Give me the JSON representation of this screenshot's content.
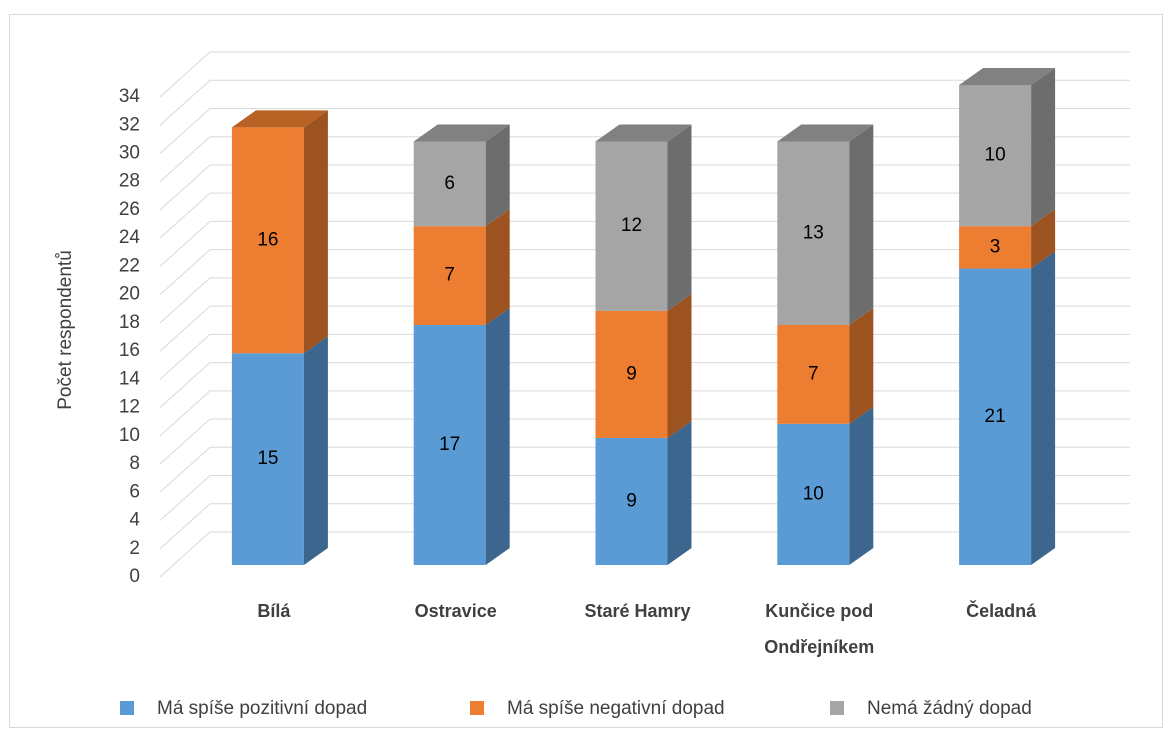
{
  "chart_data": {
    "type": "bar3d_stacked",
    "categories": [
      "Bílá",
      "Ostravice",
      "Staré Hamry",
      "Kunčice pod Ondřejníkem",
      "Čeladná"
    ],
    "series": [
      {
        "name": "Má spíše pozitivní dopad",
        "color": "#5b9bd5",
        "values": [
          15,
          17,
          9,
          10,
          21
        ]
      },
      {
        "name": "Má spíše negativní dopad",
        "color": "#ed7d31",
        "values": [
          16,
          7,
          9,
          7,
          3
        ]
      },
      {
        "name": "Nemá žádný dopad",
        "color": "#a5a5a5",
        "values": [
          null,
          6,
          12,
          13,
          10
        ]
      }
    ],
    "y_label": "Počet respondentů",
    "ylim": [
      0,
      34
    ],
    "yticks": [
      0,
      2,
      4,
      6,
      8,
      10,
      12,
      14,
      16,
      18,
      20,
      22,
      24,
      26,
      28,
      30,
      32,
      34
    ],
    "grid": true,
    "legend": "bottom"
  }
}
